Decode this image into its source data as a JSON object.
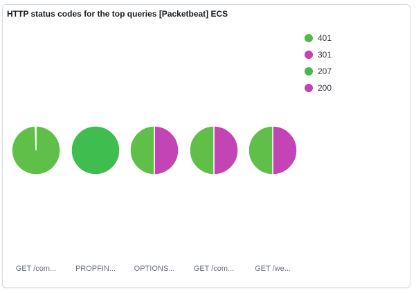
{
  "panel": {
    "title": "HTTP status codes for the top queries [Packetbeat] ECS"
  },
  "chart_data": {
    "type": "pie",
    "title": "HTTP status codes for the top queries [Packetbeat] ECS",
    "legend_position": "top-right",
    "legend": [
      {
        "label": "401",
        "color": "#54b948"
      },
      {
        "label": "301",
        "color": "#c244b5"
      },
      {
        "label": "207",
        "color": "#40b94d"
      },
      {
        "label": "200",
        "color": "#c244b5"
      }
    ],
    "pies": [
      {
        "label": "GET /com...",
        "slices": [
          {
            "status": "401",
            "value": 99.5,
            "color": "#5fbf48"
          },
          {
            "status": "301",
            "value": 0.5,
            "color": "#c244b5"
          }
        ]
      },
      {
        "label": "PROPFIN...",
        "slices": [
          {
            "status": "207",
            "value": 100,
            "color": "#40bd4f"
          }
        ]
      },
      {
        "label": "OPTIONS...",
        "slices": [
          {
            "status": "200",
            "value": 50,
            "color": "#c244b5"
          },
          {
            "status": "401",
            "value": 50,
            "color": "#5fbf48"
          }
        ]
      },
      {
        "label": "GET /com...",
        "slices": [
          {
            "status": "200",
            "value": 50,
            "color": "#c244b5"
          },
          {
            "status": "401",
            "value": 50,
            "color": "#5fbf48"
          }
        ]
      },
      {
        "label": "GET /we...",
        "slices": [
          {
            "status": "200",
            "value": 50,
            "color": "#c244b5"
          },
          {
            "status": "401",
            "value": 50,
            "color": "#5fbf48"
          }
        ]
      }
    ]
  }
}
